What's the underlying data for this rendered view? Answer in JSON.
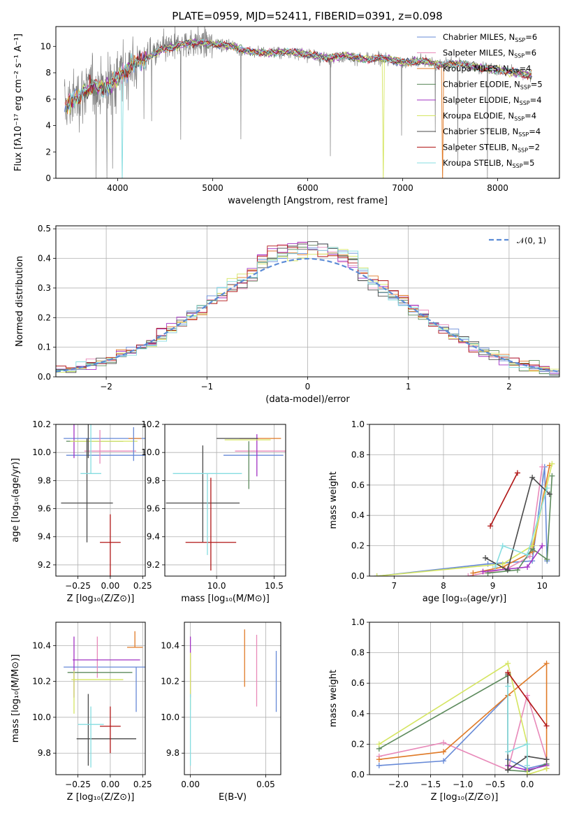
{
  "figure": {
    "title": "PLATE=0959, MJD=52411, FIBERID=0391, z=0.098"
  },
  "chart_data": [
    {
      "id": "spectrum",
      "type": "line",
      "xlabel": "wavelength [Angstrom, rest frame]",
      "ylabel": "Flux [fλ10⁻¹⁷ erg cm⁻² s⁻¹ A⁻¹]",
      "xlim": [
        3350,
        8650
      ],
      "ylim": [
        0,
        11.5
      ],
      "xticks": [
        4000,
        5000,
        6000,
        7000,
        8000
      ],
      "yticks": [
        0,
        2,
        4,
        6,
        8,
        10
      ],
      "legend_position": "upper right",
      "data_x": [
        3450,
        3550,
        3650,
        3750,
        3850,
        3950,
        4050,
        4150,
        4250,
        4350,
        4450,
        4550,
        4650,
        4800,
        5000,
        5200,
        5400,
        5600,
        5800,
        6000,
        6200,
        6400,
        6600,
        6800,
        7000,
        7200,
        7400,
        7600,
        7800,
        8000,
        8200,
        8350
      ],
      "data_y": [
        5.5,
        6.0,
        6.6,
        7.0,
        6.8,
        7.2,
        8.0,
        8.6,
        8.9,
        9.3,
        9.7,
        9.9,
        10.1,
        10.3,
        10.2,
        10.0,
        9.6,
        9.5,
        9.6,
        9.4,
        9.1,
        9.3,
        9.0,
        9.1,
        8.8,
        8.9,
        8.6,
        8.7,
        8.4,
        8.2,
        8.0,
        7.8
      ],
      "series": [
        {
          "name": "Chabrier MILES, Nₛₛₚ=6",
          "label_main": "Chabrier MILES, N",
          "label_sub": "SSP",
          "label_tail": "=6",
          "color": "#6689d7"
        },
        {
          "name": "Salpeter MILES, Nₛₛₚ=6",
          "label_main": "Salpeter MILES, N",
          "label_sub": "SSP",
          "label_tail": "=6",
          "color": "#e889b9"
        },
        {
          "name": "Kroupa MILES, Nₛₛₚ=4",
          "label_main": "Kroupa MILES, N",
          "label_sub": "SSP",
          "label_tail": "=4",
          "color": "#e07a27"
        },
        {
          "name": "Chabrier ELODIE, Nₛₛₚ=5",
          "label_main": "Chabrier ELODIE, N",
          "label_sub": "SSP",
          "label_tail": "=5",
          "color": "#5c8a5c"
        },
        {
          "name": "Salpeter ELODIE, Nₛₛₚ=4",
          "label_main": "Salpeter ELODIE, N",
          "label_sub": "SSP",
          "label_tail": "=4",
          "color": "#a232c3"
        },
        {
          "name": "Kroupa ELODIE, Nₛₛₚ=4",
          "label_main": "Kroupa ELODIE, N",
          "label_sub": "SSP",
          "label_tail": "=4",
          "color": "#d5e561"
        },
        {
          "name": "Chabrier STELIB, Nₛₛₚ=4",
          "label_main": "Chabrier STELIB, N",
          "label_sub": "SSP",
          "label_tail": "=4",
          "color": "#4a4a4a"
        },
        {
          "name": "Salpeter STELIB, Nₛₛₚ=2",
          "label_main": "Salpeter STELIB, N",
          "label_sub": "SSP",
          "label_tail": "=2",
          "color": "#b01515"
        },
        {
          "name": "Kroupa STELIB, Nₛₛₚ=5",
          "label_main": "Kroupa STELIB, N",
          "label_sub": "SSP",
          "label_tail": "=5",
          "color": "#86dde0"
        }
      ]
    },
    {
      "id": "residuals",
      "type": "step",
      "xlabel": "(data-model)/error",
      "ylabel": "Normed distribution",
      "xlim": [
        -2.5,
        2.5
      ],
      "ylim": [
        0,
        0.51
      ],
      "xticks": [
        -2,
        -1,
        0,
        1,
        2
      ],
      "yticks": [
        0.0,
        0.1,
        0.2,
        0.3,
        0.4,
        0.5
      ],
      "legend_label": "𝒩(0, 1)",
      "legend_position": "upper right",
      "grid": true
    },
    {
      "id": "age_vs_z",
      "type": "errorbar",
      "xlabel": "Z [log₁₀(Z/Z⊙)]",
      "ylabel": "age  [log₁₀(age/yr)]",
      "xlim": [
        -0.42,
        0.27
      ],
      "ylim": [
        9.12,
        10.2
      ],
      "xticks": [
        -0.25,
        0.0,
        0.25
      ],
      "yticks": [
        9.2,
        9.4,
        9.6,
        9.8,
        10.0,
        10.2
      ],
      "points": [
        {
          "x": -0.03,
          "y": 10.1,
          "ex": 0.33,
          "ey": [
            0.0,
            0.0
          ],
          "c": 0
        },
        {
          "x": 0.02,
          "y": 9.98,
          "ex": 0.36,
          "ey": [
            0.0,
            0.0
          ],
          "c": 0
        },
        {
          "x": 0.0,
          "y": 10.01,
          "ex": 0.2,
          "ey": [
            0.0,
            0.0
          ],
          "c": 1
        },
        {
          "x": 0.19,
          "y": 10.1,
          "ex": 0.05,
          "ey": [
            0.0,
            0.0
          ],
          "c": 2
        },
        {
          "x": -0.12,
          "y": 10.08,
          "ex": 0.22,
          "ey": [
            0.0,
            0.0
          ],
          "c": 3
        },
        {
          "x": -0.28,
          "y": 10.04,
          "ex": 0.0,
          "ey": [
            0.08,
            0.2
          ],
          "c": 4
        },
        {
          "x": -0.05,
          "y": 10.08,
          "ex": 0.26,
          "ey": [
            0.0,
            0.0
          ],
          "c": 5
        },
        {
          "x": -0.18,
          "y": 9.64,
          "ex": 0.2,
          "ey": [
            0.28,
            0.46
          ],
          "c": 6
        },
        {
          "x": -0.17,
          "y": 10.02,
          "ex": 0.0,
          "ey": [
            0.06,
            0.26
          ],
          "c": 6
        },
        {
          "x": 0.0,
          "y": 9.36,
          "ex": 0.08,
          "ey": [
            0.46,
            0.2
          ],
          "c": 7
        },
        {
          "x": -0.15,
          "y": 9.85,
          "ex": 0.08,
          "ey": [
            0.0,
            0.58
          ],
          "c": 8
        },
        {
          "x": 0.18,
          "y": 9.98,
          "ex": 0.0,
          "ey": [
            0.04,
            0.2
          ],
          "c": 0
        },
        {
          "x": -0.08,
          "y": 9.98,
          "ex": 0.0,
          "ey": [
            0.06,
            0.18
          ],
          "c": 1
        }
      ]
    },
    {
      "id": "age_vs_mass",
      "type": "errorbar",
      "xlabel": "mass [log₁₀(M/M⊙)]",
      "ylabel": "",
      "xlim": [
        9.55,
        10.6
      ],
      "ylim": [
        9.12,
        10.2
      ],
      "xticks": [
        10.0,
        10.5
      ],
      "yticks": [
        9.2,
        9.4,
        9.6,
        9.8,
        10.0,
        10.2
      ],
      "points": [
        {
          "x": 10.32,
          "y": 9.98,
          "ex": 0.26,
          "ey": [
            0.0,
            0.0
          ],
          "c": 0
        },
        {
          "x": 10.38,
          "y": 10.01,
          "ex": 0.22,
          "ey": [
            0.0,
            0.0
          ],
          "c": 1
        },
        {
          "x": 10.38,
          "y": 10.1,
          "ex": 0.18,
          "ey": [
            0.0,
            0.0
          ],
          "c": 2
        },
        {
          "x": 10.28,
          "y": 10.08,
          "ex": 0.0,
          "ey": [
            0.34,
            0.0
          ],
          "c": 3
        },
        {
          "x": 10.35,
          "y": 10.05,
          "ex": 0.0,
          "ey": [
            0.22,
            0.08
          ],
          "c": 4
        },
        {
          "x": 10.27,
          "y": 10.09,
          "ex": 0.2,
          "ey": [
            0.0,
            0.0
          ],
          "c": 5
        },
        {
          "x": 9.88,
          "y": 9.64,
          "ex": 0.32,
          "ey": [
            0.28,
            0.41
          ],
          "c": 6
        },
        {
          "x": 9.95,
          "y": 9.36,
          "ex": 0.22,
          "ey": [
            0.2,
            0.46
          ],
          "c": 7
        },
        {
          "x": 9.92,
          "y": 9.85,
          "ex": 0.3,
          "ey": [
            0.58,
            0.0
          ],
          "c": 8
        },
        {
          "x": 10.18,
          "y": 10.1,
          "ex": 0.18,
          "ey": [
            0.0,
            0.0
          ],
          "c": 6
        }
      ]
    },
    {
      "id": "weight_vs_age",
      "type": "line",
      "xlabel": "age  [log₁₀(age/yr)]",
      "ylabel": "mass weight",
      "xlim": [
        6.5,
        10.35
      ],
      "ylim": [
        0,
        1.0
      ],
      "xticks": [
        7,
        8,
        9,
        10
      ],
      "yticks": [
        0.0,
        0.2,
        0.4,
        0.6,
        0.8,
        1.0
      ],
      "grid": true,
      "series": [
        {
          "c": 0,
          "x": [
            6.65,
            8.9,
            9.8,
            10.05,
            10.1
          ],
          "y": [
            0.0,
            0.08,
            0.1,
            0.72,
            0.1
          ]
        },
        {
          "c": 1,
          "x": [
            8.5,
            9.3,
            9.75,
            10.0
          ],
          "y": [
            0.0,
            0.05,
            0.13,
            0.72
          ]
        },
        {
          "c": 2,
          "x": [
            8.6,
            9.2,
            9.8,
            10.15
          ],
          "y": [
            0.02,
            0.06,
            0.16,
            0.73
          ]
        },
        {
          "c": 3,
          "x": [
            8.9,
            9.5,
            9.8,
            10.1,
            10.2
          ],
          "y": [
            0.02,
            0.04,
            0.18,
            0.11,
            0.66
          ]
        },
        {
          "c": 4,
          "x": [
            8.8,
            9.7,
            10.0
          ],
          "y": [
            0.03,
            0.06,
            0.2
          ]
        },
        {
          "c": 5,
          "x": [
            6.65,
            9.2,
            9.8,
            10.2
          ],
          "y": [
            0.0,
            0.08,
            0.2,
            0.74
          ]
        },
        {
          "c": 6,
          "x": [
            8.85,
            9.3,
            9.8,
            10.15
          ],
          "y": [
            0.12,
            0.04,
            0.65,
            0.54
          ]
        },
        {
          "c": 7,
          "x": [
            8.95,
            9.5
          ],
          "y": [
            0.33,
            0.68
          ]
        },
        {
          "c": 8,
          "x": [
            9.05,
            9.2,
            9.7,
            10.1
          ],
          "y": [
            0.06,
            0.2,
            0.14,
            0.58
          ]
        }
      ]
    },
    {
      "id": "mass_vs_z",
      "type": "errorbar",
      "xlabel": "Z [log₁₀(Z/Z⊙)]",
      "ylabel": "mass [log₁₀(M/M⊙)]",
      "xlim": [
        -0.42,
        0.27
      ],
      "ylim": [
        9.68,
        10.53
      ],
      "xticks": [
        -0.25,
        0.0,
        0.25
      ],
      "yticks": [
        9.8,
        10.0,
        10.2,
        10.4
      ],
      "points": [
        {
          "x": -0.02,
          "y": 10.28,
          "ex": 0.34,
          "ey": [
            0.0,
            0.0
          ],
          "c": 0
        },
        {
          "x": 0.2,
          "y": 10.18,
          "ex": 0.0,
          "ey": [
            0.15,
            0.1
          ],
          "c": 0
        },
        {
          "x": -0.1,
          "y": 10.32,
          "ex": 0.0,
          "ey": [
            0.1,
            0.13
          ],
          "c": 1
        },
        {
          "x": -0.03,
          "y": 10.32,
          "ex": 0.26,
          "ey": [
            0.0,
            0.0
          ],
          "c": 4
        },
        {
          "x": 0.19,
          "y": 10.39,
          "ex": 0.06,
          "ey": [
            0.0,
            0.09
          ],
          "c": 2
        },
        {
          "x": -0.08,
          "y": 10.25,
          "ex": 0.25,
          "ey": [
            0.0,
            0.0
          ],
          "c": 3
        },
        {
          "x": -0.28,
          "y": 10.28,
          "ex": 0.0,
          "ey": [
            0.17,
            0.17
          ],
          "c": 4
        },
        {
          "x": -0.1,
          "y": 10.21,
          "ex": 0.2,
          "ey": [
            0.0,
            0.0
          ],
          "c": 5
        },
        {
          "x": -0.28,
          "y": 10.18,
          "ex": 0.0,
          "ey": [
            0.16,
            0.08
          ],
          "c": 5
        },
        {
          "x": -0.03,
          "y": 9.88,
          "ex": 0.23,
          "ey": [
            0.0,
            0.0
          ],
          "c": 6
        },
        {
          "x": -0.17,
          "y": 9.93,
          "ex": 0.0,
          "ey": [
            0.2,
            0.2
          ],
          "c": 6
        },
        {
          "x": 0.0,
          "y": 9.95,
          "ex": 0.08,
          "ey": [
            0.15,
            0.11
          ],
          "c": 7
        },
        {
          "x": -0.15,
          "y": 9.96,
          "ex": 0.1,
          "ey": [
            0.24,
            0.1
          ],
          "c": 8
        }
      ]
    },
    {
      "id": "mass_vs_ebv",
      "type": "errorbar",
      "xlabel": "E(B-V)",
      "ylabel": "",
      "xlim": [
        -0.004,
        0.06
      ],
      "ylim": [
        9.68,
        10.53
      ],
      "xticks": [
        0.0,
        0.05
      ],
      "yticks": [
        9.8,
        10.0,
        10.2,
        10.4
      ],
      "points": [
        {
          "x": 0.057,
          "y": 10.2,
          "ex": 0.0,
          "ey": [
            0.17,
            0.17
          ],
          "c": 0
        },
        {
          "x": 0.044,
          "y": 10.26,
          "ex": 0.0,
          "ey": [
            0.2,
            0.2
          ],
          "c": 1
        },
        {
          "x": 0.036,
          "y": 10.33,
          "ex": 0.0,
          "ey": [
            0.16,
            0.16
          ],
          "c": 2
        },
        {
          "x": 0.0,
          "y": 10.28,
          "ex": 0.0,
          "ey": [
            0.17,
            0.17
          ],
          "c": 4
        },
        {
          "x": 0.0,
          "y": 10.2,
          "ex": 0.0,
          "ey": [
            0.16,
            0.16
          ],
          "c": 5
        },
        {
          "x": 0.0,
          "y": 9.93,
          "ex": 0.0,
          "ey": [
            0.2,
            0.2
          ],
          "c": 8
        }
      ]
    },
    {
      "id": "weight_vs_z",
      "type": "line",
      "xlabel": "Z [log₁₀(Z/Z⊙)]",
      "ylabel": "mass weight",
      "xlim": [
        -2.45,
        0.5
      ],
      "ylim": [
        0,
        1.0
      ],
      "xticks": [
        -2.0,
        -1.5,
        -1.0,
        -0.5,
        0.0
      ],
      "yticks": [
        0.0,
        0.2,
        0.4,
        0.6,
        0.8,
        1.0
      ],
      "grid": true,
      "series": [
        {
          "c": 0,
          "x": [
            -2.3,
            -1.3,
            -0.3,
            -0.3,
            0.0,
            0.3
          ],
          "y": [
            0.06,
            0.09,
            0.52,
            0.1,
            0.04,
            0.07
          ]
        },
        {
          "c": 1,
          "x": [
            -2.3,
            -1.3,
            -0.3,
            0.0,
            0.3
          ],
          "y": [
            0.12,
            0.21,
            0.03,
            0.52,
            0.1
          ]
        },
        {
          "c": 2,
          "x": [
            -2.3,
            -1.3,
            -0.3,
            0.3,
            0.3
          ],
          "y": [
            0.1,
            0.15,
            0.52,
            0.73,
            0.04
          ]
        },
        {
          "c": 3,
          "x": [
            -2.3,
            -0.3,
            -0.3,
            0.0,
            0.3
          ],
          "y": [
            0.17,
            0.65,
            0.03,
            0.02,
            0.07
          ]
        },
        {
          "c": 4,
          "x": [
            -0.3,
            0.0,
            0.3
          ],
          "y": [
            0.06,
            0.03,
            0.06
          ]
        },
        {
          "c": 5,
          "x": [
            -2.3,
            -0.3,
            0.0,
            0.0,
            0.3
          ],
          "y": [
            0.2,
            0.73,
            0.2,
            0.0,
            0.04
          ]
        },
        {
          "c": 6,
          "x": [
            -0.3,
            -0.3,
            0.0,
            0.3
          ],
          "y": [
            0.66,
            0.03,
            0.12,
            0.1
          ]
        },
        {
          "c": 7,
          "x": [
            -0.3,
            0.3
          ],
          "y": [
            0.67,
            0.32
          ]
        },
        {
          "c": 8,
          "x": [
            -0.3,
            -0.3,
            0.0,
            0.0
          ],
          "y": [
            0.58,
            0.15,
            0.2,
            0.06
          ]
        }
      ]
    }
  ]
}
